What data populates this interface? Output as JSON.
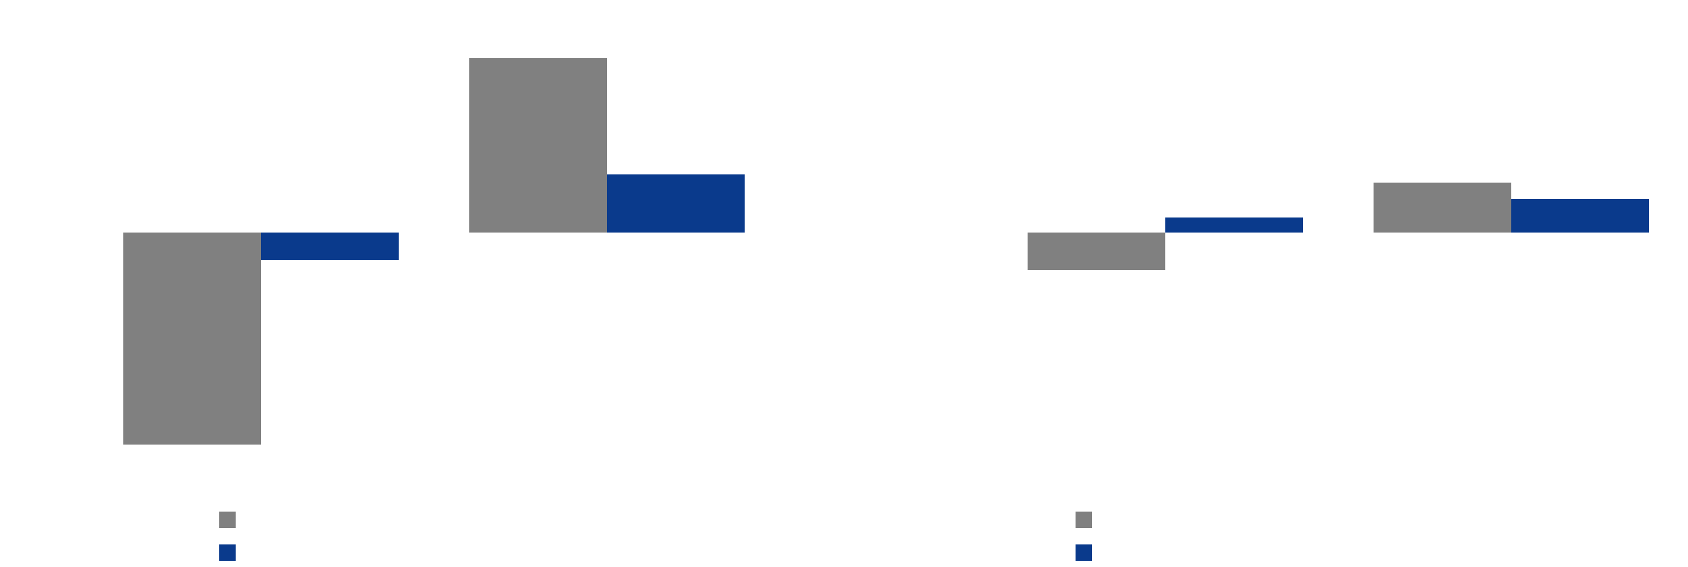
{
  "chart_data": [
    {
      "type": "bar",
      "categories": [
        "",
        ""
      ],
      "series": [
        {
          "values": [
            -3.1,
            2.55
          ],
          "color": "#808080"
        },
        {
          "values": [
            -0.4,
            0.85
          ],
          "color": "#0a3a8c"
        }
      ],
      "ylim": [
        -3.5,
        3.0
      ],
      "grid": false,
      "legend": "bottom-left",
      "title": "",
      "xlabel": "",
      "ylabel": ""
    },
    {
      "type": "bar",
      "categories": [
        "",
        ""
      ],
      "series": [
        {
          "values": [
            -0.55,
            0.73
          ],
          "color": "#808080"
        },
        {
          "values": [
            0.22,
            0.49
          ],
          "color": "#0a3a8c"
        }
      ],
      "ylim": [
        -3.5,
        3.0
      ],
      "grid": false,
      "legend": "bottom-left",
      "title": "",
      "xlabel": "",
      "ylabel": ""
    }
  ]
}
